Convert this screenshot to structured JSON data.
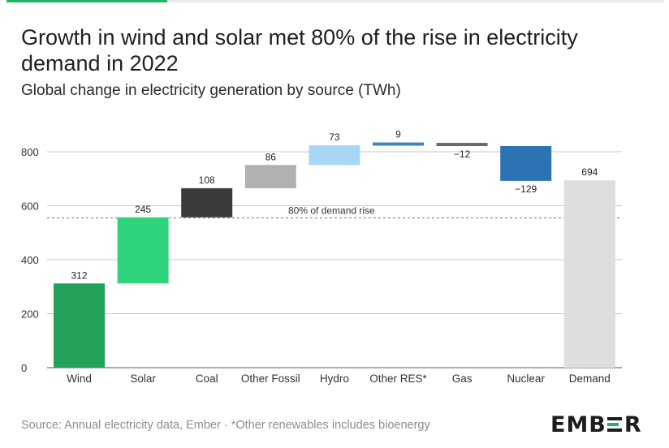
{
  "header": {
    "title": "Growth in wind and solar met 80% of the rise in electricity demand in 2022",
    "subtitle": "Global change in electricity generation by source (TWh)"
  },
  "footer": {
    "source": "Source: Annual electricity data, Ember · *Other renewables includes bioenergy",
    "logo_text": "EMBER"
  },
  "colors": {
    "accent": "#22b567",
    "grid": "#c8c8c8",
    "reference_line": "#777777"
  },
  "chart_data": {
    "type": "waterfall",
    "title": "Growth in wind and solar met 80% of the rise in electricity demand in 2022",
    "subtitle": "Global change in electricity generation by source (TWh)",
    "xlabel": "",
    "ylabel": "",
    "ylim": [
      0,
      870
    ],
    "yticks": [
      0,
      200,
      400,
      600,
      800
    ],
    "grid": true,
    "categories": [
      "Wind",
      "Solar",
      "Coal",
      "Other Fossil",
      "Hydro",
      "Other RES*",
      "Gas",
      "Nuclear",
      "Demand"
    ],
    "values": [
      312,
      245,
      108,
      86,
      73,
      9,
      -12,
      -129,
      694
    ],
    "labels": [
      "312",
      "245",
      "108",
      "86",
      "73",
      "9",
      "−12",
      "−129",
      "694"
    ],
    "is_total": [
      false,
      false,
      false,
      false,
      false,
      false,
      false,
      false,
      true
    ],
    "colors": [
      "#22a25a",
      "#2ed47c",
      "#3b3b3b",
      "#b1b1b1",
      "#a8d6f5",
      "#3a86c4",
      "#6a6a6a",
      "#2c73b3",
      "#dedede"
    ],
    "reference_line": {
      "value": 555,
      "label": "80% of demand rise",
      "style": "dashed"
    }
  }
}
